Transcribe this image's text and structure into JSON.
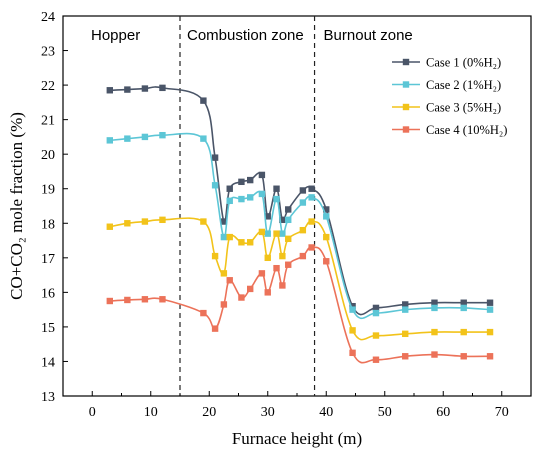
{
  "chart_data": {
    "type": "line",
    "xlabel": "Furnace height (m)",
    "ylabel": "CO+CO₂ mole fraction (%)",
    "xlim": [
      -5,
      75
    ],
    "ylim": [
      13,
      24
    ],
    "xticks": [
      "0",
      "10",
      "20",
      "30",
      "40",
      "50",
      "60",
      "70"
    ],
    "yticks": [
      "13",
      "14",
      "15",
      "16",
      "17",
      "18",
      "19",
      "20",
      "21",
      "22",
      "23",
      "24"
    ],
    "grid": false,
    "legend_position": "top-right",
    "zones": [
      {
        "label": "Hopper"
      },
      {
        "label": "Combustion zone"
      },
      {
        "label": "Burnout zone"
      }
    ],
    "zone_boundaries": [
      15,
      38
    ],
    "series": [
      {
        "name": "Case 1 (0%H₂)",
        "color": "#4a5568",
        "points": [
          [
            3,
            21.85
          ],
          [
            6,
            21.87
          ],
          [
            9,
            21.9
          ],
          [
            12,
            21.92
          ],
          [
            19,
            21.55
          ],
          [
            21,
            19.9
          ],
          [
            22.5,
            18.05
          ],
          [
            23.5,
            19.0
          ],
          [
            25.5,
            19.2
          ],
          [
            27,
            19.25
          ],
          [
            29,
            19.4
          ],
          [
            30,
            18.2
          ],
          [
            31.5,
            19.0
          ],
          [
            32.5,
            18.1
          ],
          [
            33.5,
            18.4
          ],
          [
            36,
            18.95
          ],
          [
            37.5,
            19.0
          ],
          [
            40,
            18.4
          ],
          [
            44.5,
            15.6
          ],
          [
            48.5,
            15.55
          ],
          [
            53.5,
            15.65
          ],
          [
            58.5,
            15.7
          ],
          [
            63.5,
            15.7
          ],
          [
            68,
            15.7
          ]
        ]
      },
      {
        "name": "Case 2 (1%H₂)",
        "color": "#5cc6d6",
        "points": [
          [
            3,
            20.4
          ],
          [
            6,
            20.45
          ],
          [
            9,
            20.5
          ],
          [
            12,
            20.55
          ],
          [
            19,
            20.45
          ],
          [
            21,
            19.1
          ],
          [
            22.5,
            17.6
          ],
          [
            23.5,
            18.65
          ],
          [
            25.5,
            18.7
          ],
          [
            27,
            18.75
          ],
          [
            29,
            18.85
          ],
          [
            30,
            17.7
          ],
          [
            31.5,
            18.7
          ],
          [
            32.5,
            17.7
          ],
          [
            33.5,
            18.1
          ],
          [
            36,
            18.6
          ],
          [
            37.5,
            18.75
          ],
          [
            40,
            18.2
          ],
          [
            44.5,
            15.5
          ],
          [
            48.5,
            15.4
          ],
          [
            53.5,
            15.5
          ],
          [
            58.5,
            15.55
          ],
          [
            63.5,
            15.55
          ],
          [
            68,
            15.5
          ]
        ]
      },
      {
        "name": "Case 3 (5%H₂)",
        "color": "#f2c31a",
        "points": [
          [
            3,
            17.9
          ],
          [
            6,
            18.0
          ],
          [
            9,
            18.05
          ],
          [
            12,
            18.1
          ],
          [
            19,
            18.05
          ],
          [
            21,
            17.05
          ],
          [
            22.5,
            16.55
          ],
          [
            23.5,
            17.6
          ],
          [
            25.5,
            17.45
          ],
          [
            27,
            17.45
          ],
          [
            29,
            17.75
          ],
          [
            30,
            17.0
          ],
          [
            31.5,
            17.7
          ],
          [
            32.5,
            17.05
          ],
          [
            33.5,
            17.55
          ],
          [
            36,
            17.8
          ],
          [
            37.5,
            18.05
          ],
          [
            40,
            17.6
          ],
          [
            44.5,
            14.9
          ],
          [
            48.5,
            14.75
          ],
          [
            53.5,
            14.8
          ],
          [
            58.5,
            14.85
          ],
          [
            63.5,
            14.85
          ],
          [
            68,
            14.85
          ]
        ]
      },
      {
        "name": "Case 4 (10%H₂)",
        "color": "#ec7259",
        "points": [
          [
            3,
            15.75
          ],
          [
            6,
            15.78
          ],
          [
            9,
            15.8
          ],
          [
            12,
            15.8
          ],
          [
            19,
            15.4
          ],
          [
            21,
            14.95
          ],
          [
            22.5,
            15.65
          ],
          [
            23.5,
            16.35
          ],
          [
            25.5,
            15.85
          ],
          [
            27,
            16.1
          ],
          [
            29,
            16.55
          ],
          [
            30,
            16.0
          ],
          [
            31.5,
            16.7
          ],
          [
            32.5,
            16.2
          ],
          [
            33.5,
            16.8
          ],
          [
            36,
            17.05
          ],
          [
            37.5,
            17.3
          ],
          [
            40,
            16.9
          ],
          [
            44.5,
            14.25
          ],
          [
            48.5,
            14.05
          ],
          [
            53.5,
            14.15
          ],
          [
            58.5,
            14.2
          ],
          [
            63.5,
            14.15
          ],
          [
            68,
            14.15
          ]
        ]
      }
    ]
  }
}
